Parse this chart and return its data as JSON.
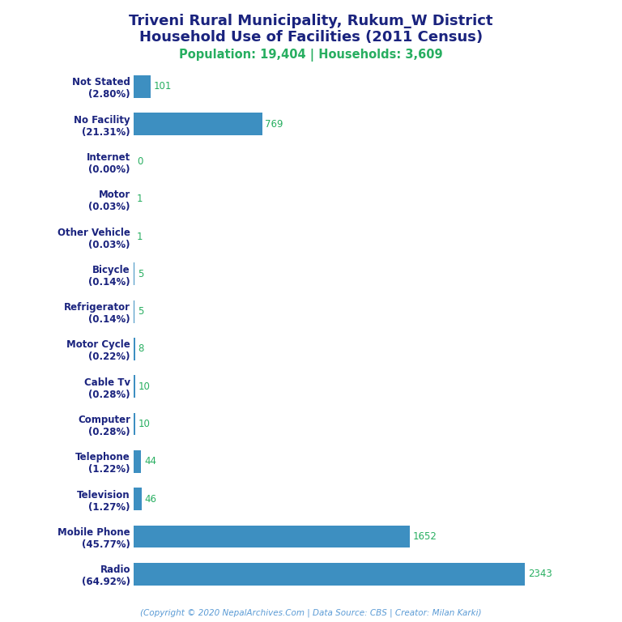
{
  "title_line1": "Triveni Rural Municipality, Rukum_W District",
  "title_line2": "Household Use of Facilities (2011 Census)",
  "subtitle": "Population: 19,404 | Households: 3,609",
  "footer": "(Copyright © 2020 NepalArchives.Com | Data Source: CBS | Creator: Milan Karki)",
  "categories": [
    "Not Stated\n(2.80%)",
    "No Facility\n(21.31%)",
    "Internet\n(0.00%)",
    "Motor\n(0.03%)",
    "Other Vehicle\n(0.03%)",
    "Bicycle\n(0.14%)",
    "Refrigerator\n(0.14%)",
    "Motor Cycle\n(0.22%)",
    "Cable Tv\n(0.28%)",
    "Computer\n(0.28%)",
    "Telephone\n(1.22%)",
    "Television\n(1.27%)",
    "Mobile Phone\n(45.77%)",
    "Radio\n(64.92%)"
  ],
  "values": [
    101,
    769,
    0,
    1,
    1,
    5,
    5,
    8,
    10,
    10,
    44,
    46,
    1652,
    2343
  ],
  "bar_color": "#3d8fc1",
  "label_color": "#27ae60",
  "title_color": "#1a237e",
  "subtitle_color": "#27ae60",
  "footer_color": "#5b9bd5",
  "background_color": "#ffffff",
  "bar_label_fontsize": 8.5,
  "ytick_fontsize": 8.5,
  "title_fontsize": 13,
  "subtitle_fontsize": 10.5,
  "footer_fontsize": 7.5,
  "xlim": 2700
}
